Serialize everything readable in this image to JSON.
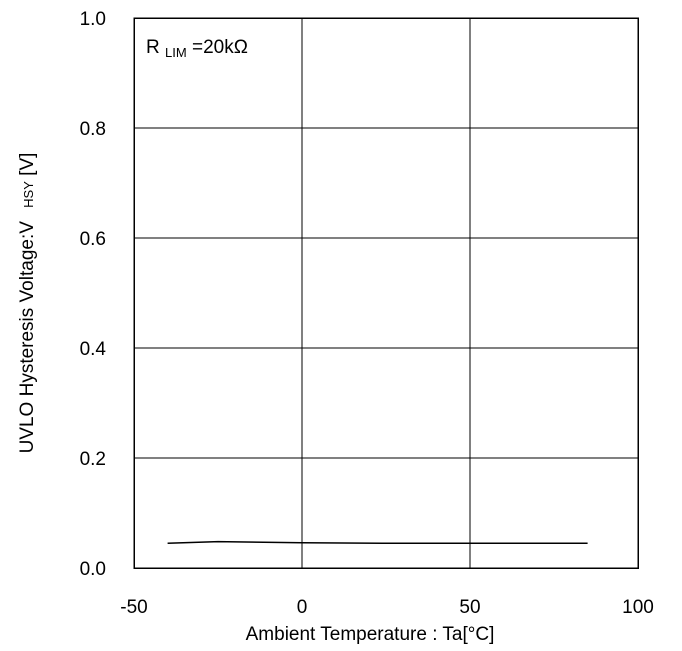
{
  "chart_data": {
    "type": "line",
    "xlabel": "Ambient Temperature : Ta[°C]",
    "ylabel": {
      "main": "UVLO Hysteresis Voltage:V",
      "sub": "HSY",
      "unit": " [V]"
    },
    "annotation": {
      "main": "R",
      "sub": "LIM",
      "rest": "=20kΩ"
    },
    "xlim": [
      -50,
      100
    ],
    "ylim": [
      0.0,
      1.0
    ],
    "xticks": [
      -50,
      0,
      50,
      100
    ],
    "xtick_labels": [
      "-50",
      "0",
      "50",
      "100"
    ],
    "yticks": [
      0.0,
      0.2,
      0.4,
      0.6,
      0.8,
      1.0
    ],
    "ytick_labels": [
      "0.0",
      "0.2",
      "0.4",
      "0.6",
      "0.8",
      "1.0"
    ],
    "grid": true,
    "series": [
      {
        "x": [
          -40,
          -25,
          0,
          25,
          50,
          85
        ],
        "y": [
          0.045,
          0.048,
          0.046,
          0.045,
          0.045,
          0.045
        ]
      }
    ]
  }
}
